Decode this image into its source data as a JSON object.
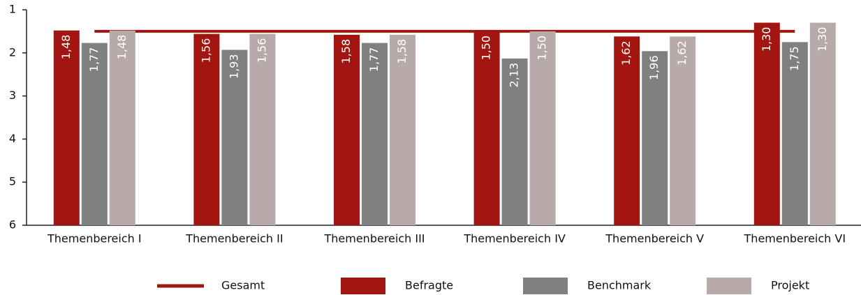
{
  "chart_data": {
    "type": "bar",
    "categories": [
      "Themenbereich I",
      "Themenbereich II",
      "Themenbereich III",
      "Themenbereich IV",
      "Themenbereich V",
      "Themenbereich VI"
    ],
    "series": [
      {
        "name": "Gesamt",
        "type": "line",
        "color": "#a31510",
        "values": [
          1.5,
          1.5,
          1.5,
          1.5,
          1.5,
          1.5
        ]
      },
      {
        "name": "Befragte",
        "color": "#a31510",
        "values": [
          1.48,
          1.56,
          1.58,
          1.5,
          1.62,
          1.3
        ],
        "value_labels": [
          "1,48",
          "1,56",
          "1,58",
          "1,50",
          "1,62",
          "1,30"
        ]
      },
      {
        "name": "Benchmark",
        "color": "#808080",
        "values": [
          1.77,
          1.93,
          1.77,
          2.13,
          1.96,
          1.75
        ],
        "value_labels": [
          "1,77",
          "1,93",
          "1,77",
          "2,13",
          "1,96",
          "1,75"
        ]
      },
      {
        "name": "Projekt",
        "color": "#b8aaaa",
        "values": [
          1.48,
          1.56,
          1.58,
          1.5,
          1.62,
          1.3
        ],
        "value_labels": [
          "1,48",
          "1,56",
          "1,58",
          "1,50",
          "1,62",
          "1,30"
        ]
      }
    ],
    "ylim": [
      1,
      6
    ],
    "yticks": [
      1,
      2,
      3,
      4,
      5,
      6
    ],
    "y_inverted": true,
    "legend": "bottom"
  }
}
